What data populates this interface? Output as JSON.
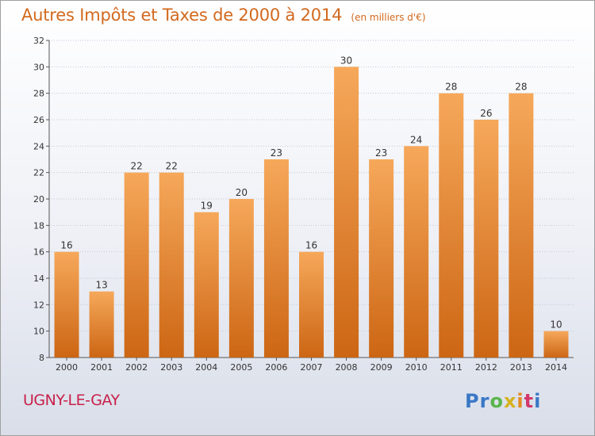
{
  "header": {
    "title": "Autres Impôts et Taxes de 2000 à 2014",
    "unit": "(en milliers d'€)"
  },
  "commune": "UGNY-LE-GAY",
  "logo": {
    "letters": [
      "P",
      "r",
      "o",
      "x",
      "i",
      "t",
      "i"
    ],
    "colors": [
      "#3a78c6",
      "#3a78c6",
      "#5ab54b",
      "#d6b21e",
      "#e58a1f",
      "#d2386a",
      "#3a78c6"
    ]
  },
  "colors": {
    "bar_top": "#f6a85a",
    "bar_bottom": "#cc6614",
    "title": "#d2691e",
    "commune": "#c8204a"
  },
  "chart_data": {
    "type": "bar",
    "title": "Autres Impôts et Taxes de 2000 à 2014",
    "subtitle": "(en milliers d'€)",
    "xlabel": "",
    "ylabel": "",
    "categories": [
      "2000",
      "2001",
      "2002",
      "2003",
      "2004",
      "2005",
      "2006",
      "2007",
      "2008",
      "2009",
      "2010",
      "2011",
      "2012",
      "2013",
      "2014"
    ],
    "values": [
      16,
      13,
      22,
      22,
      19,
      20,
      23,
      16,
      30,
      23,
      24,
      28,
      26,
      28,
      10
    ],
    "ylim": [
      8,
      32
    ],
    "yticks": [
      8,
      10,
      12,
      14,
      16,
      18,
      20,
      22,
      24,
      26,
      28,
      30,
      32
    ],
    "grid": true,
    "legend": "none"
  }
}
